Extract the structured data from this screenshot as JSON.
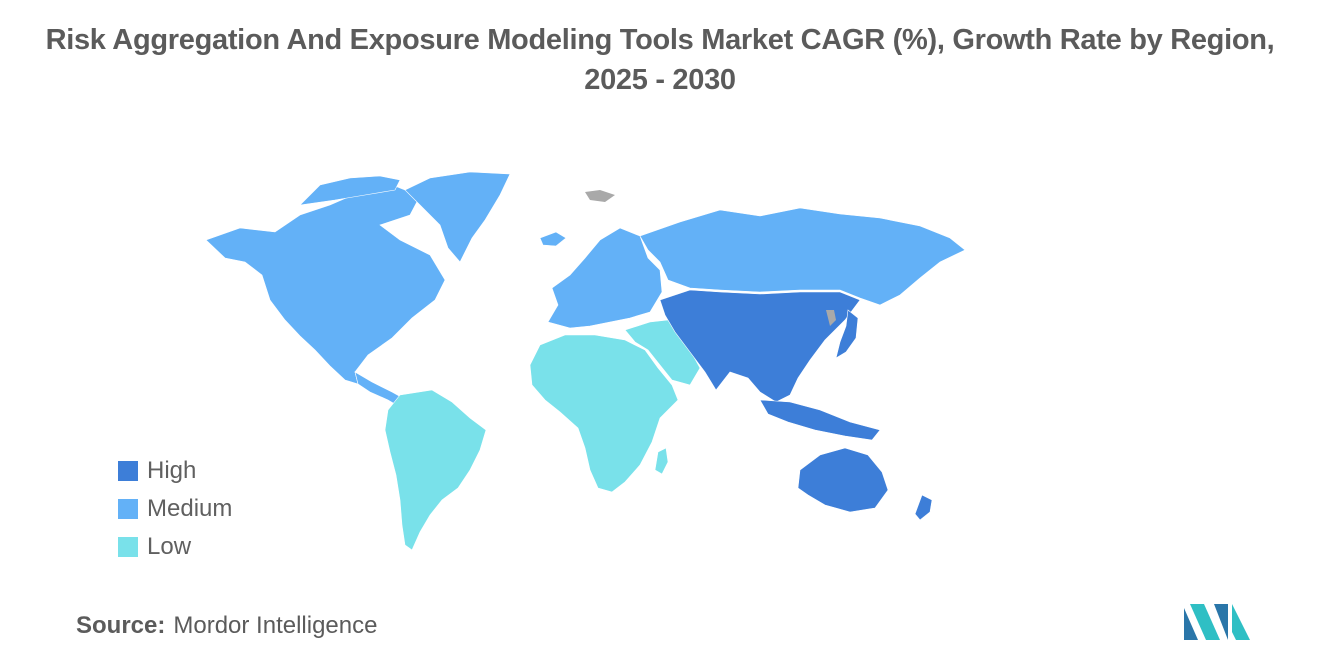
{
  "title": "Risk Aggregation And Exposure Modeling Tools Market CAGR (%), Growth Rate by Region, 2025 - 2030",
  "legend": [
    {
      "label": "High",
      "color": "#3d7ed8"
    },
    {
      "label": "Medium",
      "color": "#63b1f7"
    },
    {
      "label": "Low",
      "color": "#79e1ea"
    }
  ],
  "no_data_color": "#a9a9a9",
  "regions": [
    {
      "name": "North America",
      "level": "Medium"
    },
    {
      "name": "Europe",
      "level": "Medium"
    },
    {
      "name": "Asia Pacific",
      "level": "High"
    },
    {
      "name": "Latin America",
      "level": "Low"
    },
    {
      "name": "Middle East and Africa",
      "level": "Low"
    }
  ],
  "source": {
    "key": "Source:",
    "value": "Mordor Intelligence"
  },
  "logo": {
    "icon": "mordor-intelligence-logo"
  }
}
